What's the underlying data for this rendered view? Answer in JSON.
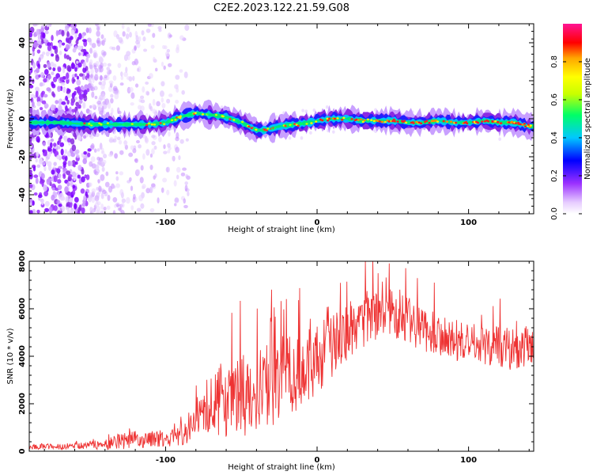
{
  "title": "C2E2.2023.122.21.59.G08",
  "chart_data": [
    {
      "type": "heatmap",
      "xlabel": "Height of straight line (km)",
      "ylabel": "Frequency (Hz)",
      "xlim": [
        -190,
        143
      ],
      "ylim": [
        -50,
        50
      ],
      "xticks": [
        -100,
        0,
        100
      ],
      "yticks": [
        -40,
        -20,
        0,
        20,
        40
      ],
      "colorbar": {
        "label": "Normalized spectral amplitude",
        "range": [
          0,
          1
        ],
        "ticks": [
          "0.0",
          "0.2",
          "0.4",
          "0.6",
          "0.8"
        ],
        "colors": [
          "#ffffff",
          "#e6ccff",
          "#9b30ff",
          "#0000ff",
          "#00c8ff",
          "#00ff66",
          "#c8ff00",
          "#ffff00",
          "#ffa500",
          "#ff0000",
          "#ff1493"
        ]
      },
      "ridge": {
        "x": [
          -185,
          -170,
          -150,
          -130,
          -110,
          -100,
          -90,
          -80,
          -70,
          -60,
          -50,
          -40,
          -35,
          -25,
          -15,
          -5,
          0,
          10,
          20,
          30,
          40,
          50,
          60,
          70,
          80,
          90,
          100,
          110,
          120,
          130,
          140
        ],
        "y": [
          -2,
          -2,
          -3,
          -3,
          -3,
          -2,
          1,
          3,
          2,
          1,
          -2,
          -6,
          -6,
          -4,
          -3,
          -2,
          -1,
          0,
          0,
          -1,
          -1,
          -1,
          -2,
          -2,
          -1,
          -2,
          -2,
          -1,
          -2,
          -2,
          -4
        ]
      }
    },
    {
      "type": "line",
      "xlabel": "Height of straight line (km)",
      "ylabel": "SNR (10 * v/v)",
      "xlim": [
        -190,
        143
      ],
      "ylim": [
        0,
        8000
      ],
      "xticks": [
        -100,
        0,
        100
      ],
      "yticks": [
        0,
        2000,
        4000,
        6000,
        8000
      ],
      "color": "#ee3333",
      "envelope": {
        "x": [
          -190,
          -170,
          -150,
          -140,
          -130,
          -120,
          -110,
          -100,
          -90,
          -85,
          -75,
          -70,
          -60,
          -50,
          -40,
          -30,
          -20,
          -10,
          0,
          10,
          20,
          30,
          40,
          50,
          60,
          70,
          80,
          90,
          100,
          110,
          120,
          130,
          140,
          143
        ],
        "mean": [
          200,
          200,
          250,
          300,
          400,
          500,
          500,
          550,
          650,
          900,
          1500,
          1900,
          2100,
          2300,
          2600,
          2800,
          3100,
          3400,
          3900,
          4400,
          5000,
          5400,
          5700,
          5800,
          5500,
          5100,
          5000,
          4600,
          4600,
          4500,
          4400,
          4300,
          4400,
          4500
        ],
        "spread": [
          120,
          120,
          150,
          250,
          350,
          350,
          350,
          350,
          450,
          600,
          900,
          1300,
          1500,
          1700,
          1800,
          1800,
          1700,
          1600,
          1500,
          1400,
          1200,
          1100,
          1000,
          1000,
          1000,
          900,
          900,
          900,
          900,
          900,
          900,
          900,
          900,
          900
        ]
      }
    }
  ]
}
